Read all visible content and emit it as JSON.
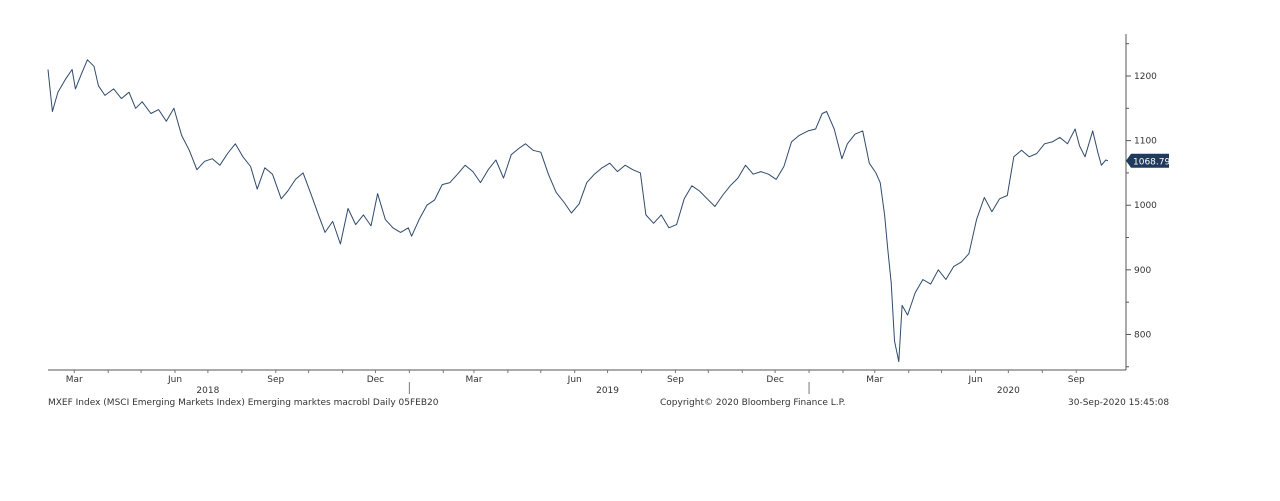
{
  "footer": {
    "left": "MXEF Index (MSCI Emerging Markets Index) Emerging marktes macrobl  Daily 05FEB20",
    "center": "Copyright© 2020 Bloomberg Finance L.P.",
    "right": "30-Sep-2020 15:45:08"
  },
  "chart_data": {
    "type": "line",
    "title": "",
    "xlabel": "",
    "ylabel": "",
    "y_axis_side": "right",
    "ylim": [
      745,
      1265
    ],
    "xlim": [
      "2018-02-05",
      "2020-09-30"
    ],
    "y_ticks": [
      800,
      900,
      1000,
      1100,
      1200
    ],
    "x_month_ticks": [
      {
        "label": "Mar",
        "date": "2018-03-01"
      },
      {
        "label": "Jun",
        "date": "2018-06-01"
      },
      {
        "label": "Sep",
        "date": "2018-09-01"
      },
      {
        "label": "Dec",
        "date": "2018-12-01"
      },
      {
        "label": "Mar",
        "date": "2019-03-01"
      },
      {
        "label": "Jun",
        "date": "2019-06-01"
      },
      {
        "label": "Sep",
        "date": "2019-09-01"
      },
      {
        "label": "Dec",
        "date": "2019-12-01"
      },
      {
        "label": "Mar",
        "date": "2020-03-01"
      },
      {
        "label": "Jun",
        "date": "2020-06-01"
      },
      {
        "label": "Sep",
        "date": "2020-09-01"
      }
    ],
    "x_year_labels": [
      {
        "label": "2018",
        "date": "2018-07-01"
      },
      {
        "label": "2019",
        "date": "2019-07-01"
      },
      {
        "label": "2020",
        "date": "2020-07-01"
      }
    ],
    "year_separators": [
      "2019-01-01",
      "2020-01-01"
    ],
    "last_value_label": "1068.79",
    "line_color": "#2f4a6b",
    "label_bg_color": "#1f3a5c",
    "grid": false,
    "legend": "none",
    "series": [
      {
        "points": [
          [
            "2018-02-05",
            1210
          ],
          [
            "2018-02-09",
            1145
          ],
          [
            "2018-02-14",
            1175
          ],
          [
            "2018-02-21",
            1195
          ],
          [
            "2018-02-27",
            1210
          ],
          [
            "2018-03-02",
            1180
          ],
          [
            "2018-03-08",
            1205
          ],
          [
            "2018-03-13",
            1225
          ],
          [
            "2018-03-19",
            1215
          ],
          [
            "2018-03-23",
            1185
          ],
          [
            "2018-03-29",
            1170
          ],
          [
            "2018-04-06",
            1180
          ],
          [
            "2018-04-13",
            1165
          ],
          [
            "2018-04-20",
            1175
          ],
          [
            "2018-04-26",
            1150
          ],
          [
            "2018-05-02",
            1160
          ],
          [
            "2018-05-10",
            1142
          ],
          [
            "2018-05-17",
            1148
          ],
          [
            "2018-05-24",
            1130
          ],
          [
            "2018-05-31",
            1150
          ],
          [
            "2018-06-07",
            1108
          ],
          [
            "2018-06-14",
            1085
          ],
          [
            "2018-06-21",
            1055
          ],
          [
            "2018-06-28",
            1068
          ],
          [
            "2018-07-05",
            1072
          ],
          [
            "2018-07-12",
            1062
          ],
          [
            "2018-07-19",
            1080
          ],
          [
            "2018-07-26",
            1095
          ],
          [
            "2018-08-02",
            1075
          ],
          [
            "2018-08-09",
            1060
          ],
          [
            "2018-08-15",
            1025
          ],
          [
            "2018-08-22",
            1058
          ],
          [
            "2018-08-29",
            1048
          ],
          [
            "2018-09-06",
            1010
          ],
          [
            "2018-09-12",
            1022
          ],
          [
            "2018-09-19",
            1040
          ],
          [
            "2018-09-26",
            1050
          ],
          [
            "2018-10-03",
            1018
          ],
          [
            "2018-10-10",
            985
          ],
          [
            "2018-10-16",
            958
          ],
          [
            "2018-10-23",
            975
          ],
          [
            "2018-10-30",
            940
          ],
          [
            "2018-11-06",
            995
          ],
          [
            "2018-11-13",
            970
          ],
          [
            "2018-11-20",
            985
          ],
          [
            "2018-11-27",
            968
          ],
          [
            "2018-12-03",
            1018
          ],
          [
            "2018-12-10",
            978
          ],
          [
            "2018-12-17",
            965
          ],
          [
            "2018-12-24",
            958
          ],
          [
            "2018-12-31",
            965
          ],
          [
            "2019-01-03",
            952
          ],
          [
            "2019-01-10",
            978
          ],
          [
            "2019-01-17",
            1000
          ],
          [
            "2019-01-24",
            1008
          ],
          [
            "2019-01-31",
            1032
          ],
          [
            "2019-02-07",
            1035
          ],
          [
            "2019-02-14",
            1048
          ],
          [
            "2019-02-21",
            1062
          ],
          [
            "2019-02-28",
            1052
          ],
          [
            "2019-03-07",
            1035
          ],
          [
            "2019-03-14",
            1055
          ],
          [
            "2019-03-21",
            1070
          ],
          [
            "2019-03-28",
            1042
          ],
          [
            "2019-04-04",
            1078
          ],
          [
            "2019-04-11",
            1088
          ],
          [
            "2019-04-17",
            1095
          ],
          [
            "2019-04-24",
            1085
          ],
          [
            "2019-05-01",
            1082
          ],
          [
            "2019-05-08",
            1048
          ],
          [
            "2019-05-15",
            1020
          ],
          [
            "2019-05-22",
            1005
          ],
          [
            "2019-05-29",
            988
          ],
          [
            "2019-06-05",
            1002
          ],
          [
            "2019-06-12",
            1035
          ],
          [
            "2019-06-19",
            1048
          ],
          [
            "2019-06-26",
            1058
          ],
          [
            "2019-07-03",
            1065
          ],
          [
            "2019-07-10",
            1052
          ],
          [
            "2019-07-17",
            1062
          ],
          [
            "2019-07-24",
            1055
          ],
          [
            "2019-07-31",
            1050
          ],
          [
            "2019-08-05",
            985
          ],
          [
            "2019-08-12",
            972
          ],
          [
            "2019-08-19",
            985
          ],
          [
            "2019-08-26",
            965
          ],
          [
            "2019-09-02",
            970
          ],
          [
            "2019-09-09",
            1010
          ],
          [
            "2019-09-16",
            1030
          ],
          [
            "2019-09-23",
            1022
          ],
          [
            "2019-09-30",
            1010
          ],
          [
            "2019-10-07",
            998
          ],
          [
            "2019-10-14",
            1015
          ],
          [
            "2019-10-21",
            1030
          ],
          [
            "2019-10-28",
            1042
          ],
          [
            "2019-11-04",
            1062
          ],
          [
            "2019-11-11",
            1048
          ],
          [
            "2019-11-18",
            1052
          ],
          [
            "2019-11-25",
            1048
          ],
          [
            "2019-12-02",
            1040
          ],
          [
            "2019-12-09",
            1060
          ],
          [
            "2019-12-16",
            1098
          ],
          [
            "2019-12-23",
            1108
          ],
          [
            "2019-12-31",
            1115
          ],
          [
            "2020-01-07",
            1118
          ],
          [
            "2020-01-13",
            1142
          ],
          [
            "2020-01-17",
            1145
          ],
          [
            "2020-01-24",
            1118
          ],
          [
            "2020-01-31",
            1072
          ],
          [
            "2020-02-05",
            1095
          ],
          [
            "2020-02-12",
            1110
          ],
          [
            "2020-02-19",
            1115
          ],
          [
            "2020-02-25",
            1065
          ],
          [
            "2020-03-02",
            1050
          ],
          [
            "2020-03-06",
            1035
          ],
          [
            "2020-03-10",
            985
          ],
          [
            "2020-03-13",
            930
          ],
          [
            "2020-03-16",
            880
          ],
          [
            "2020-03-19",
            790
          ],
          [
            "2020-03-23",
            758
          ],
          [
            "2020-03-26",
            845
          ],
          [
            "2020-03-31",
            830
          ],
          [
            "2020-04-07",
            865
          ],
          [
            "2020-04-14",
            885
          ],
          [
            "2020-04-21",
            878
          ],
          [
            "2020-04-28",
            900
          ],
          [
            "2020-05-05",
            885
          ],
          [
            "2020-05-12",
            905
          ],
          [
            "2020-05-19",
            912
          ],
          [
            "2020-05-26",
            925
          ],
          [
            "2020-06-02",
            978
          ],
          [
            "2020-06-09",
            1012
          ],
          [
            "2020-06-16",
            990
          ],
          [
            "2020-06-23",
            1010
          ],
          [
            "2020-06-30",
            1015
          ],
          [
            "2020-07-06",
            1075
          ],
          [
            "2020-07-13",
            1085
          ],
          [
            "2020-07-20",
            1075
          ],
          [
            "2020-07-27",
            1080
          ],
          [
            "2020-08-03",
            1095
          ],
          [
            "2020-08-10",
            1098
          ],
          [
            "2020-08-17",
            1105
          ],
          [
            "2020-08-24",
            1095
          ],
          [
            "2020-08-31",
            1118
          ],
          [
            "2020-09-04",
            1092
          ],
          [
            "2020-09-09",
            1075
          ],
          [
            "2020-09-16",
            1115
          ],
          [
            "2020-09-21",
            1080
          ],
          [
            "2020-09-24",
            1062
          ],
          [
            "2020-09-28",
            1070
          ],
          [
            "2020-09-30",
            1068.79
          ]
        ]
      }
    ]
  }
}
